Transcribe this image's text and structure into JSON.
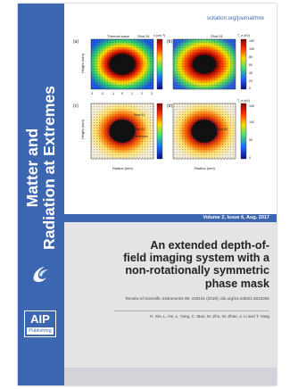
{
  "spine": {
    "title_line1": "Matter and",
    "title_line2": "Radiation at Extremes",
    "publisher_logo_text": "AIP",
    "publisher_logo_subtext": "Publishing",
    "accent_color": "#3d66b0"
  },
  "header": {
    "url": "scitation.org/journal/mre"
  },
  "figure": {
    "panel_labels": [
      "(a)",
      "(b)",
      "(c)",
      "(d)"
    ],
    "top_left_title": "Thermal wave",
    "shot_labels": [
      "Shot 51",
      "Shot 51",
      "Shot 52",
      "Shot 53"
    ],
    "colorbar_label_left": "n (cm⁻³)",
    "colorbar_label_right": "T_e (eV)",
    "colorbar_label_d": "T_e (eV)",
    "colorbar_ticks_b": [
      "150",
      "100",
      "80",
      "60",
      "40",
      "20",
      "0"
    ],
    "colorbar_ticks_d": [
      "150",
      "100",
      "50",
      "0"
    ],
    "y_axis_label": "Height (mm)",
    "x_axis_label": "Radius (mm)",
    "x_ticks": [
      "-3",
      "-2",
      "-1",
      "0",
      "1",
      "2",
      "3"
    ],
    "inline_labels": [
      "Shot 51",
      "Shot 52",
      "Hohlraum",
      "Shock 53"
    ]
  },
  "volume_info": "Volume 2, Issue 6, Aug. 2017",
  "article": {
    "title_lines": [
      "An extended depth-of-",
      "field imaging system with a",
      "non-rotationally symmetric",
      "phase mask"
    ],
    "citation": "Review of Scientific Instruments 89, 103101 (2018); doi.org/10.1063/1.5023292",
    "authors": "H. Xie, L. He, L. Yang, C. Mao, M. Zhu, M. Zhao, J. Li and T. Yang"
  }
}
